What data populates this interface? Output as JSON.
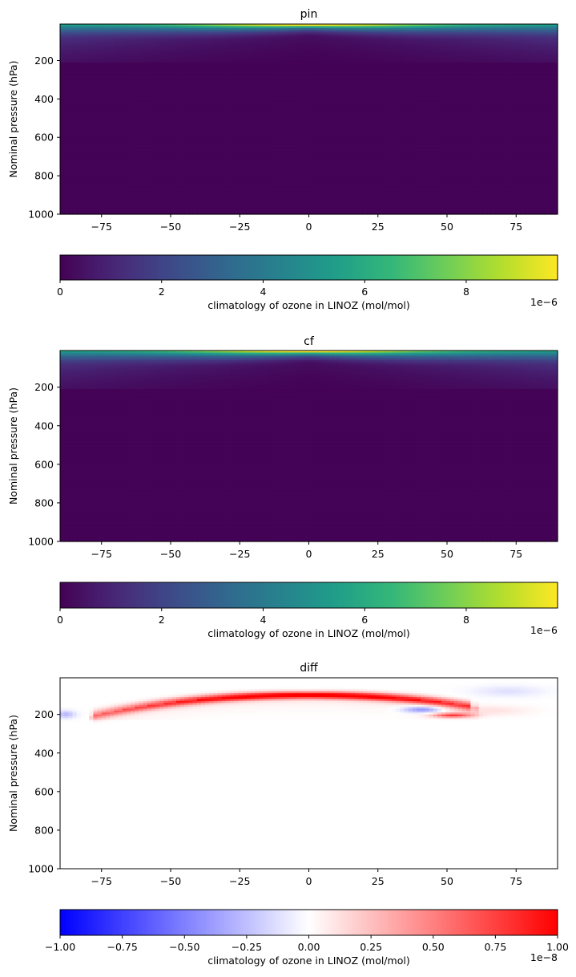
{
  "chart_data": [
    {
      "type": "heatmap",
      "title": "pin",
      "xlabel": "",
      "ylabel": "Nominal pressure (hPa)",
      "xlim": [
        -90,
        90
      ],
      "ylim": [
        1000,
        10
      ],
      "xticks": [
        "−75",
        "−50",
        "−25",
        "0",
        "25",
        "50",
        "75"
      ],
      "xtick_values": [
        -75,
        -50,
        -25,
        0,
        25,
        50,
        75
      ],
      "yticks": [
        "200",
        "400",
        "600",
        "800",
        "1000"
      ],
      "ytick_values": [
        200,
        400,
        600,
        800,
        1000
      ],
      "colormap": "viridis",
      "colorbar": {
        "label": "climatology of ozone in LINOZ (mol/mol)",
        "ticks": [
          "0",
          "2",
          "4",
          "6",
          "8"
        ],
        "tick_values": [
          0,
          2,
          4,
          6,
          8
        ],
        "range": [
          0,
          9.8
        ],
        "offset_text": "1e−6"
      },
      "field_summary": {
        "peak_value": 9.8,
        "peak_pressure": 15,
        "upper_band_pressure_range": [
          10,
          210
        ],
        "background_value": 0.05
      }
    },
    {
      "type": "heatmap",
      "title": "cf",
      "xlabel": "",
      "ylabel": "Nominal pressure (hPa)",
      "xlim": [
        -90,
        90
      ],
      "ylim": [
        1000,
        10
      ],
      "xticks": [
        "−75",
        "−50",
        "−25",
        "0",
        "25",
        "50",
        "75"
      ],
      "xtick_values": [
        -75,
        -50,
        -25,
        0,
        25,
        50,
        75
      ],
      "yticks": [
        "200",
        "400",
        "600",
        "800",
        "1000"
      ],
      "ytick_values": [
        200,
        400,
        600,
        800,
        1000
      ],
      "colormap": "viridis",
      "colorbar": {
        "label": "climatology of ozone in LINOZ (mol/mol)",
        "ticks": [
          "0",
          "2",
          "4",
          "6",
          "8"
        ],
        "tick_values": [
          0,
          2,
          4,
          6,
          8
        ],
        "range": [
          0,
          9.8
        ],
        "offset_text": "1e−6"
      },
      "field_summary": {
        "peak_value": 9.8,
        "peak_pressure": 15,
        "upper_band_pressure_range": [
          10,
          210
        ],
        "background_value": 0.05
      }
    },
    {
      "type": "heatmap",
      "title": "diff",
      "xlabel": "",
      "ylabel": "Nominal pressure (hPa)",
      "xlim": [
        -90,
        90
      ],
      "ylim": [
        1000,
        10
      ],
      "xticks": [
        "−75",
        "−50",
        "−25",
        "0",
        "25",
        "50",
        "75"
      ],
      "xtick_values": [
        -75,
        -50,
        -25,
        0,
        25,
        50,
        75
      ],
      "yticks": [
        "200",
        "400",
        "600",
        "800",
        "1000"
      ],
      "ytick_values": [
        200,
        400,
        600,
        800,
        1000
      ],
      "colormap": "bwr",
      "colorbar": {
        "label": "climatology of ozone in LINOZ (mol/mol)",
        "ticks": [
          "−1.00",
          "−0.75",
          "−0.50",
          "−0.25",
          "0.00",
          "0.25",
          "0.50",
          "0.75",
          "1.00"
        ],
        "tick_values": [
          -1,
          -0.75,
          -0.5,
          -0.25,
          0,
          0.25,
          0.5,
          0.75,
          1
        ],
        "range": [
          -1,
          1
        ],
        "offset_text": "1e−8"
      },
      "features": [
        {
          "kind": "positive_arc",
          "lat_range": [
            -75,
            75
          ],
          "pressure_top": 100,
          "pressure_bottom": 210,
          "peak": 0.9
        },
        {
          "kind": "negative_patch",
          "lat": -88,
          "pressure": 195,
          "value": -0.25
        },
        {
          "kind": "negative_patch",
          "lat": 42,
          "pressure": 175,
          "value": -0.4
        },
        {
          "kind": "positive_patch",
          "lat": 52,
          "pressure": 205,
          "value": 0.85
        },
        {
          "kind": "negative_patch",
          "lat": 72,
          "pressure": 80,
          "value": -0.1
        }
      ]
    }
  ]
}
